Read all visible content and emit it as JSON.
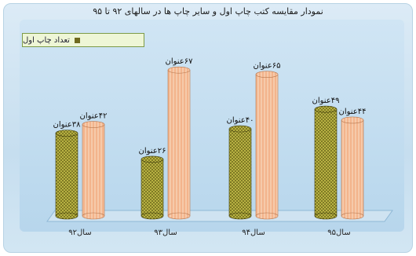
{
  "chart_data": {
    "type": "bar",
    "title": "نمودار مقایسه کتب چاپ اول و سایر چاپ ها در سالهای ۹۲ تا ۹۵",
    "categories": [
      "سال۹۲",
      "سال۹۳",
      "سال۹۴",
      "سال۹۵"
    ],
    "series": [
      {
        "name": "تعداد چاپ اول",
        "values": [
          38,
          26,
          40,
          49
        ],
        "labels": [
          "۳۸عنوان",
          "۲۶عنوان",
          "۴۰عنوان",
          "۴۹عنوان"
        ],
        "color": "#706b1c"
      },
      {
        "name": "",
        "values": [
          42,
          67,
          65,
          44
        ],
        "labels": [
          "۴۲عنوان",
          "۶۷عنوان",
          "۶۵عنوان",
          "۴۴عنوان"
        ],
        "color": "#f3b48c"
      }
    ],
    "ylim": [
      0,
      75
    ],
    "legend_position": "top-left",
    "grid": false
  }
}
